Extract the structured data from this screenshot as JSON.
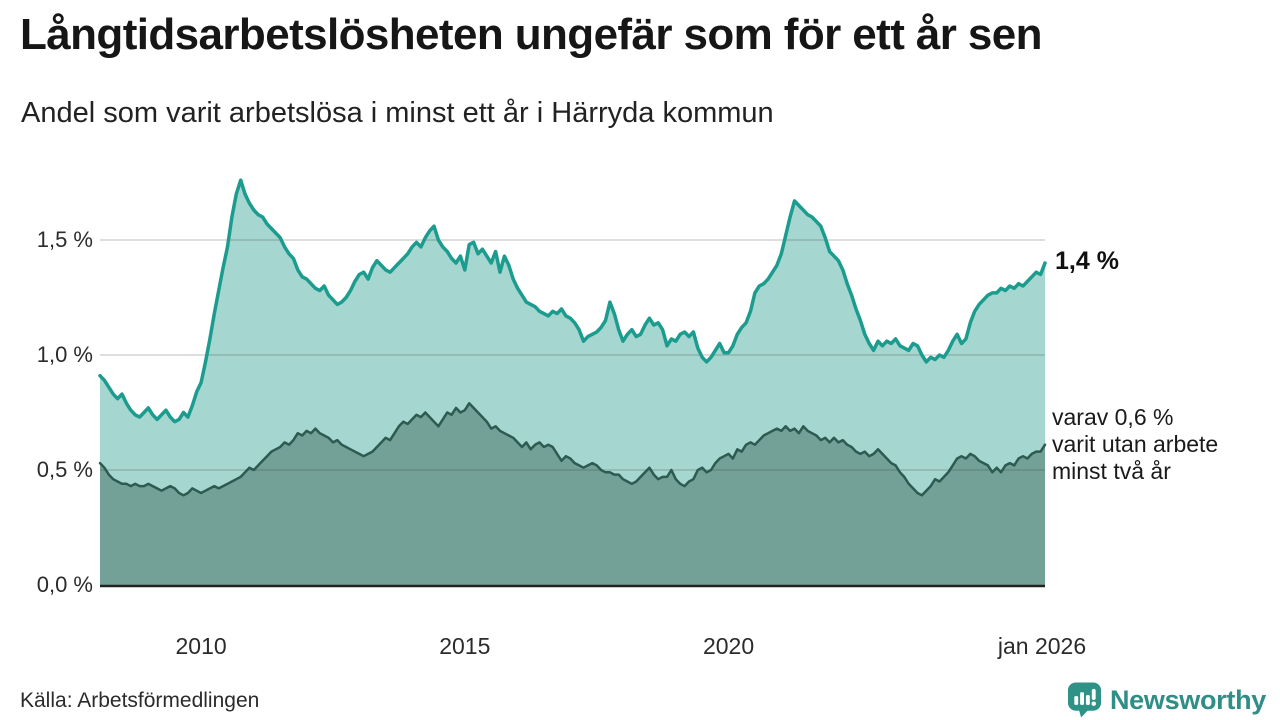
{
  "header": {
    "title": "Långtidsarbetslösheten ungefär som för ett år sen",
    "subtitle": "Andel som varit arbetslösa i minst ett år i Härryda kommun"
  },
  "chart_data": {
    "type": "area",
    "title": "Långtidsarbetslösheten ungefär som för ett år sen",
    "subtitle": "Andel som varit arbetslösa i minst ett år i Härryda kommun",
    "x_unit": "month",
    "x_start": "2008-02",
    "x_end": "2026-01",
    "grid": "horizontal",
    "ylim": [
      0,
      1.8
    ],
    "y_ticks": [
      {
        "label": "0,0 %",
        "value": 0.0
      },
      {
        "label": "0,5 %",
        "value": 0.5
      },
      {
        "label": "1,0 %",
        "value": 1.0
      },
      {
        "label": "1,5 %",
        "value": 1.5
      }
    ],
    "x_ticks": [
      {
        "label": "2010",
        "month_index": 23
      },
      {
        "label": "2015",
        "month_index": 83
      },
      {
        "label": "2020",
        "month_index": 143
      },
      {
        "label": "jan 2026",
        "month_index": 215
      }
    ],
    "series": [
      {
        "name": "Andel som varit arbetslösa i minst ett år",
        "color": "#1b9c8e",
        "fill": "#a6d6d0",
        "line_width": 3.5,
        "latest_value": 1.4,
        "values": [
          0.91,
          0.89,
          0.86,
          0.83,
          0.81,
          0.83,
          0.79,
          0.76,
          0.74,
          0.73,
          0.75,
          0.77,
          0.74,
          0.72,
          0.74,
          0.76,
          0.73,
          0.71,
          0.72,
          0.75,
          0.73,
          0.78,
          0.84,
          0.88,
          0.97,
          1.07,
          1.18,
          1.28,
          1.38,
          1.47,
          1.6,
          1.7,
          1.76,
          1.7,
          1.66,
          1.63,
          1.61,
          1.6,
          1.57,
          1.55,
          1.53,
          1.51,
          1.47,
          1.44,
          1.42,
          1.37,
          1.34,
          1.33,
          1.31,
          1.29,
          1.28,
          1.3,
          1.26,
          1.24,
          1.22,
          1.23,
          1.25,
          1.28,
          1.32,
          1.35,
          1.36,
          1.33,
          1.38,
          1.41,
          1.39,
          1.37,
          1.36,
          1.38,
          1.4,
          1.42,
          1.44,
          1.47,
          1.49,
          1.47,
          1.51,
          1.54,
          1.56,
          1.5,
          1.47,
          1.45,
          1.42,
          1.4,
          1.43,
          1.37,
          1.48,
          1.49,
          1.44,
          1.46,
          1.43,
          1.4,
          1.45,
          1.36,
          1.43,
          1.39,
          1.33,
          1.29,
          1.26,
          1.23,
          1.22,
          1.21,
          1.19,
          1.18,
          1.17,
          1.19,
          1.18,
          1.2,
          1.17,
          1.16,
          1.14,
          1.11,
          1.06,
          1.08,
          1.09,
          1.1,
          1.12,
          1.15,
          1.23,
          1.18,
          1.11,
          1.06,
          1.09,
          1.11,
          1.08,
          1.09,
          1.13,
          1.16,
          1.13,
          1.14,
          1.11,
          1.04,
          1.07,
          1.06,
          1.09,
          1.1,
          1.08,
          1.1,
          1.03,
          0.99,
          0.97,
          0.99,
          1.02,
          1.05,
          1.01,
          1.01,
          1.04,
          1.09,
          1.12,
          1.14,
          1.19,
          1.27,
          1.3,
          1.31,
          1.33,
          1.36,
          1.39,
          1.44,
          1.52,
          1.6,
          1.67,
          1.65,
          1.63,
          1.61,
          1.6,
          1.58,
          1.56,
          1.51,
          1.45,
          1.43,
          1.41,
          1.37,
          1.31,
          1.26,
          1.2,
          1.15,
          1.09,
          1.05,
          1.02,
          1.06,
          1.04,
          1.06,
          1.05,
          1.07,
          1.04,
          1.03,
          1.02,
          1.05,
          1.04,
          1.0,
          0.97,
          0.99,
          0.98,
          1.0,
          0.99,
          1.02,
          1.06,
          1.09,
          1.05,
          1.07,
          1.14,
          1.19,
          1.22,
          1.24,
          1.26,
          1.27,
          1.27,
          1.29,
          1.28,
          1.3,
          1.29,
          1.31,
          1.3,
          1.32,
          1.34,
          1.36,
          1.35,
          1.4
        ]
      },
      {
        "name": "varav varit utan arbete minst två år",
        "color": "#2d5b52",
        "fill": "#73a198",
        "line_width": 2.5,
        "latest_value": 0.6,
        "values": [
          0.53,
          0.51,
          0.48,
          0.46,
          0.45,
          0.44,
          0.44,
          0.43,
          0.44,
          0.43,
          0.43,
          0.44,
          0.43,
          0.42,
          0.41,
          0.42,
          0.43,
          0.42,
          0.4,
          0.39,
          0.4,
          0.42,
          0.41,
          0.4,
          0.41,
          0.42,
          0.43,
          0.42,
          0.43,
          0.44,
          0.45,
          0.46,
          0.47,
          0.49,
          0.51,
          0.5,
          0.52,
          0.54,
          0.56,
          0.58,
          0.59,
          0.6,
          0.62,
          0.61,
          0.63,
          0.66,
          0.65,
          0.67,
          0.66,
          0.68,
          0.66,
          0.65,
          0.64,
          0.62,
          0.63,
          0.61,
          0.6,
          0.59,
          0.58,
          0.57,
          0.56,
          0.57,
          0.58,
          0.6,
          0.62,
          0.64,
          0.63,
          0.66,
          0.69,
          0.71,
          0.7,
          0.72,
          0.74,
          0.73,
          0.75,
          0.73,
          0.71,
          0.69,
          0.72,
          0.75,
          0.74,
          0.77,
          0.75,
          0.76,
          0.79,
          0.77,
          0.75,
          0.73,
          0.71,
          0.68,
          0.69,
          0.67,
          0.66,
          0.65,
          0.64,
          0.62,
          0.6,
          0.62,
          0.59,
          0.61,
          0.62,
          0.6,
          0.61,
          0.6,
          0.57,
          0.54,
          0.56,
          0.55,
          0.53,
          0.52,
          0.51,
          0.52,
          0.53,
          0.52,
          0.5,
          0.49,
          0.49,
          0.48,
          0.48,
          0.46,
          0.45,
          0.44,
          0.45,
          0.47,
          0.49,
          0.51,
          0.48,
          0.46,
          0.47,
          0.47,
          0.5,
          0.46,
          0.44,
          0.43,
          0.45,
          0.46,
          0.5,
          0.51,
          0.49,
          0.5,
          0.53,
          0.55,
          0.56,
          0.57,
          0.55,
          0.59,
          0.58,
          0.61,
          0.62,
          0.61,
          0.63,
          0.65,
          0.66,
          0.67,
          0.68,
          0.67,
          0.69,
          0.67,
          0.68,
          0.66,
          0.69,
          0.67,
          0.66,
          0.65,
          0.63,
          0.64,
          0.62,
          0.64,
          0.62,
          0.63,
          0.61,
          0.6,
          0.58,
          0.57,
          0.58,
          0.56,
          0.57,
          0.59,
          0.57,
          0.55,
          0.53,
          0.52,
          0.49,
          0.47,
          0.44,
          0.42,
          0.4,
          0.39,
          0.41,
          0.43,
          0.46,
          0.45,
          0.47,
          0.49,
          0.52,
          0.55,
          0.56,
          0.55,
          0.57,
          0.56,
          0.54,
          0.53,
          0.52,
          0.49,
          0.51,
          0.49,
          0.52,
          0.53,
          0.52,
          0.55,
          0.56,
          0.55,
          0.57,
          0.58,
          0.58,
          0.61
        ]
      }
    ],
    "annotations": {
      "latest_main": "1,4 %",
      "latest_sub": "varav 0,6 %\nvarit utan arbete\nminst två år"
    },
    "grid_color": "#d7d7d7",
    "axis_color": "#222222"
  },
  "footer": {
    "source": "Källa: Arbetsförmedlingen",
    "brand": "Newsworthy",
    "brand_color": "#2f8e85",
    "logo_icon": "newsworthy-speech-bubble-bar-chart-icon"
  }
}
